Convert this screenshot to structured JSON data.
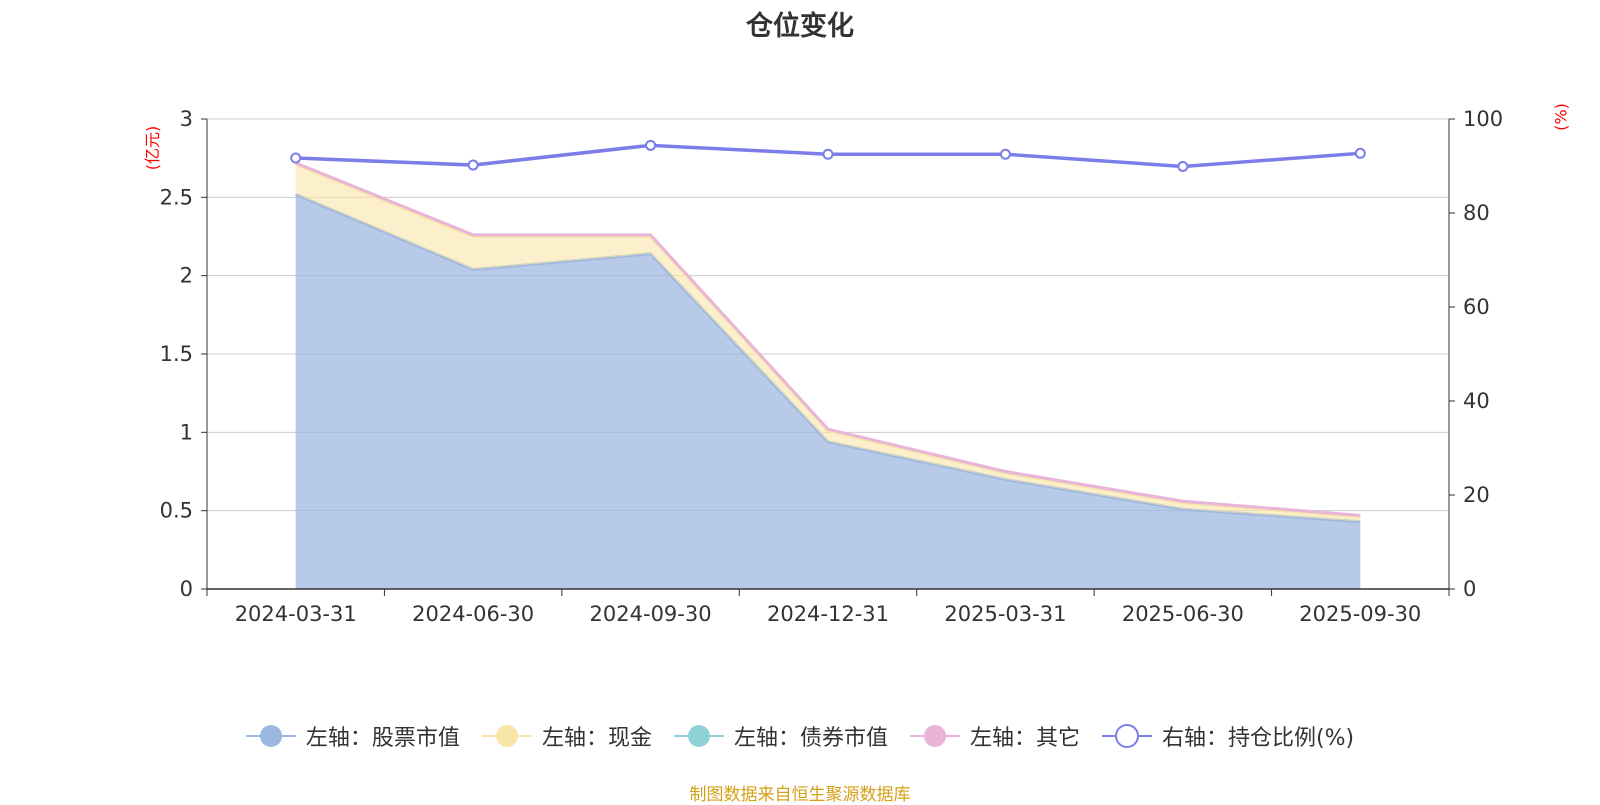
{
  "chart_data": {
    "type": "area",
    "title": "仓位变化",
    "left_unit": "(亿元)",
    "right_unit": "(%)",
    "categories": [
      "2024-03-31",
      "2024-06-30",
      "2024-09-30",
      "2024-12-31",
      "2025-03-31",
      "2025-06-30",
      "2025-09-30"
    ],
    "left_ylim": [
      0,
      3
    ],
    "left_yticks": [
      "0",
      "0.5",
      "1",
      "1.5",
      "2",
      "2.5",
      "3"
    ],
    "right_ylim": [
      0,
      100
    ],
    "right_yticks": [
      "0",
      "20",
      "40",
      "60",
      "80",
      "100"
    ],
    "stacked": true,
    "grid": true,
    "legend_position": "bottom",
    "series": [
      {
        "name": "左轴：股票市值",
        "axis": "left",
        "type": "area",
        "color": "#9bb7e0",
        "values": [
          2.52,
          2.04,
          2.14,
          0.94,
          0.7,
          0.51,
          0.43
        ]
      },
      {
        "name": "左轴：现金",
        "axis": "left",
        "type": "area",
        "color": "#f8e6a8",
        "values": [
          0.19,
          0.21,
          0.11,
          0.07,
          0.04,
          0.04,
          0.03
        ]
      },
      {
        "name": "左轴：债券市值",
        "axis": "left",
        "type": "area",
        "color": "#8fd1d4",
        "values": [
          0,
          0,
          0,
          0,
          0,
          0,
          0
        ]
      },
      {
        "name": "左轴：其它",
        "axis": "left",
        "type": "area",
        "color": "#e8b4d8",
        "values": [
          0.01,
          0.01,
          0.01,
          0.01,
          0.01,
          0.01,
          0.01
        ]
      },
      {
        "name": "右轴：持仓比例(%)",
        "axis": "right",
        "type": "line",
        "color": "#7b7de8",
        "values": [
          91.7,
          90.2,
          94.4,
          92.5,
          92.5,
          89.9,
          92.7
        ]
      }
    ],
    "source": "制图数据来自恒生聚源数据库"
  }
}
